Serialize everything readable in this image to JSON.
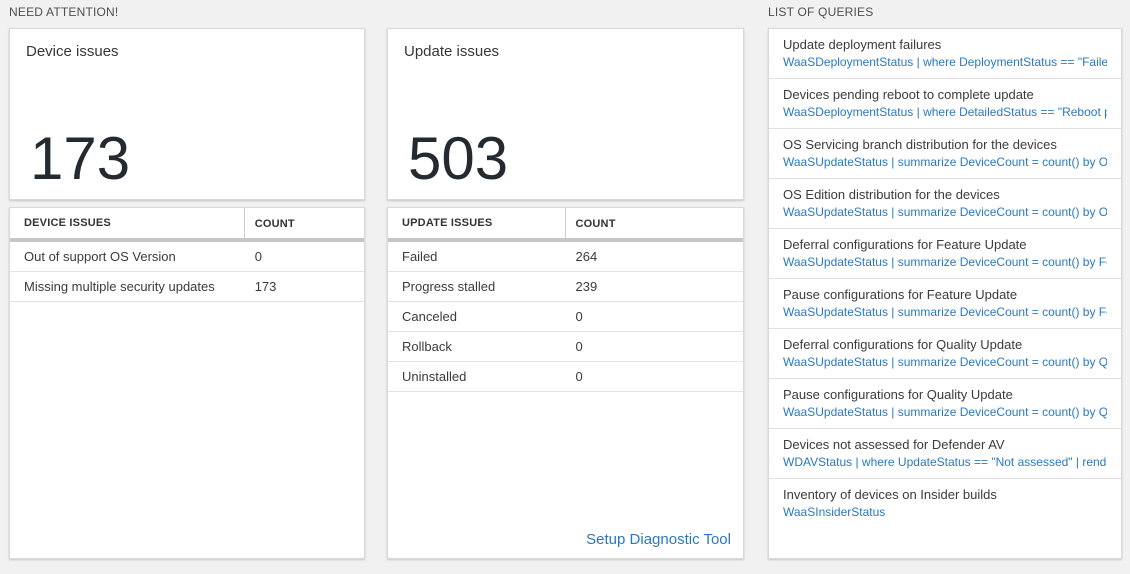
{
  "colors": {
    "accent_blue": "#2a79c0",
    "page_background": "#f1f1f1",
    "header_bar_gray": "#c6c6c6"
  },
  "sections": {
    "need_attention": "NEED ATTENTION!",
    "list_of_queries": "LIST OF QUERIES"
  },
  "device_card": {
    "title": "Device issues",
    "big_number": "173",
    "table": {
      "headers": [
        "DEVICE ISSUES",
        "COUNT"
      ],
      "rows": [
        {
          "label": "Out of support OS Version",
          "count": "0"
        },
        {
          "label": "Missing multiple security updates",
          "count": "173"
        }
      ]
    }
  },
  "update_card": {
    "title": "Update issues",
    "big_number": "503",
    "table": {
      "headers": [
        "UPDATE ISSUES",
        "COUNT"
      ],
      "rows": [
        {
          "label": "Failed",
          "count": "264"
        },
        {
          "label": "Progress stalled",
          "count": "239"
        },
        {
          "label": "Canceled",
          "count": "0"
        },
        {
          "label": "Rollback",
          "count": "0"
        },
        {
          "label": "Uninstalled",
          "count": "0"
        }
      ]
    },
    "footer_link": "Setup Diagnostic Tool"
  },
  "queries": [
    {
      "title": "Update deployment failures",
      "query": "WaaSDeploymentStatus | where DeploymentStatus == \"Failed\" |..."
    },
    {
      "title": "Devices pending reboot to complete update",
      "query": "WaaSDeploymentStatus | where DetailedStatus == \"Reboot pend..."
    },
    {
      "title": "OS Servicing branch distribution for the devices",
      "query": "WaaSUpdateStatus | summarize DeviceCount = count() by OSSer..."
    },
    {
      "title": "OS Edition distribution for the devices",
      "query": "WaaSUpdateStatus | summarize DeviceCount = count() by OSEdit..."
    },
    {
      "title": "Deferral configurations for Feature Update",
      "query": "WaaSUpdateStatus | summarize DeviceCount = count() by Featur..."
    },
    {
      "title": "Pause configurations for Feature Update",
      "query": "WaaSUpdateStatus | summarize DeviceCount = count() by Featur..."
    },
    {
      "title": "Deferral configurations for Quality Update",
      "query": "WaaSUpdateStatus | summarize DeviceCount = count() by Qualit..."
    },
    {
      "title": "Pause configurations for Quality Update",
      "query": "WaaSUpdateStatus | summarize DeviceCount = count() by Qualit..."
    },
    {
      "title": "Devices not assessed for Defender AV",
      "query": "WDAVStatus | where UpdateStatus == \"Not assessed\" | render ta..."
    },
    {
      "title": "Inventory of devices on Insider builds",
      "query": "WaaSInsiderStatus"
    }
  ]
}
